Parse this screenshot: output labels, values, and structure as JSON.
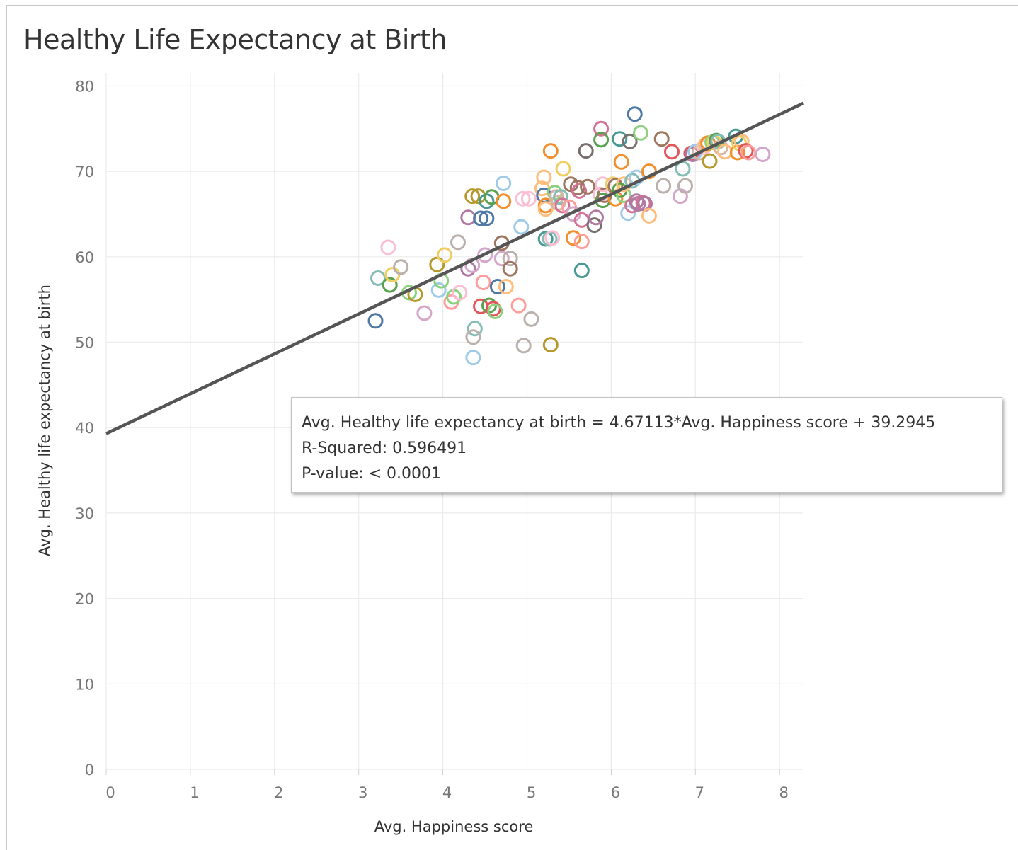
{
  "page": {
    "title": "Healthy Life Expectancy at Birth"
  },
  "tooltip": {
    "equation": "Avg. Healthy life expectancy at birth = 4.67113*Avg. Happiness score + 39.2945",
    "r_squared": "R-Squared: 0.596491",
    "p_value": "P-value: < 0.0001"
  },
  "chart_data": {
    "type": "scatter",
    "title": "Healthy Life Expectancy at Birth",
    "xlabel": "Avg. Happiness score",
    "ylabel": "Avg. Healthy life expectancy at birth",
    "xlim": [
      0,
      8.3
    ],
    "ylim": [
      0,
      80
    ],
    "xticks": [
      0,
      1,
      2,
      3,
      4,
      5,
      6,
      7,
      8
    ],
    "yticks": [
      0,
      10,
      20,
      30,
      40,
      50,
      60,
      70,
      80
    ],
    "grid": true,
    "marker": "hollow-circle",
    "trend_line": {
      "slope": 4.67113,
      "intercept": 39.2945,
      "color": "#555555"
    },
    "colors": [
      "#4e79a7",
      "#a0cbe8",
      "#f28e2b",
      "#ffbe7d",
      "#59a14f",
      "#8cd17d",
      "#b6992d",
      "#f1ce63",
      "#499894",
      "#86bcb6",
      "#e15759",
      "#ff9d9a",
      "#79706e",
      "#bab0ac",
      "#d37295",
      "#fabfd2",
      "#b07aa1",
      "#d4a6c8",
      "#9d7660",
      "#d7b5a6"
    ],
    "points": [
      [
        3.2,
        52.5,
        0
      ],
      [
        3.23,
        57.5,
        9
      ],
      [
        3.35,
        61.1,
        15
      ],
      [
        3.37,
        56.7,
        4
      ],
      [
        3.4,
        57.9,
        7
      ],
      [
        3.5,
        58.8,
        13
      ],
      [
        3.6,
        55.8,
        5
      ],
      [
        3.67,
        55.6,
        6
      ],
      [
        3.78,
        53.4,
        17
      ],
      [
        3.93,
        59.1,
        6
      ],
      [
        3.95,
        56.1,
        1
      ],
      [
        3.98,
        57.2,
        5
      ],
      [
        4.02,
        60.2,
        7
      ],
      [
        4.1,
        54.7,
        11
      ],
      [
        4.13,
        55.3,
        5
      ],
      [
        4.18,
        61.7,
        13
      ],
      [
        4.2,
        55.8,
        15
      ],
      [
        4.3,
        64.6,
        16
      ],
      [
        4.3,
        58.6,
        16
      ],
      [
        4.35,
        59.0,
        17
      ],
      [
        4.35,
        67.1,
        6
      ],
      [
        4.38,
        51.6,
        9
      ],
      [
        4.36,
        50.6,
        13
      ],
      [
        4.36,
        48.2,
        1
      ],
      [
        4.42,
        67.1,
        6
      ],
      [
        4.45,
        64.5,
        0
      ],
      [
        4.45,
        54.2,
        10
      ],
      [
        4.48,
        57.0,
        11
      ],
      [
        4.5,
        60.2,
        17
      ],
      [
        4.52,
        66.5,
        8
      ],
      [
        4.52,
        64.5,
        0
      ],
      [
        4.55,
        54.3,
        4
      ],
      [
        4.58,
        67.0,
        4
      ],
      [
        4.6,
        53.9,
        10
      ],
      [
        4.62,
        53.6,
        5
      ],
      [
        4.65,
        56.5,
        0
      ],
      [
        4.7,
        61.6,
        18
      ],
      [
        4.72,
        66.5,
        2
      ],
      [
        4.72,
        68.6,
        1
      ],
      [
        4.7,
        59.8,
        17
      ],
      [
        4.75,
        56.5,
        3
      ],
      [
        4.8,
        59.8,
        13
      ],
      [
        4.8,
        58.6,
        18
      ],
      [
        4.9,
        54.3,
        11
      ],
      [
        4.93,
        63.5,
        1
      ],
      [
        4.95,
        66.8,
        15
      ],
      [
        4.96,
        49.6,
        13
      ],
      [
        5.02,
        66.8,
        15
      ],
      [
        5.05,
        52.7,
        13
      ],
      [
        5.18,
        68.0,
        3
      ],
      [
        5.2,
        69.3,
        3
      ],
      [
        5.2,
        67.2,
        0
      ],
      [
        5.22,
        62.1,
        8
      ],
      [
        5.22,
        66.0,
        2
      ],
      [
        5.22,
        65.6,
        3
      ],
      [
        5.27,
        62.1,
        9
      ],
      [
        5.28,
        72.4,
        2
      ],
      [
        5.28,
        49.7,
        6
      ],
      [
        5.3,
        62.2,
        15
      ],
      [
        5.33,
        67.5,
        5
      ],
      [
        5.35,
        67.0,
        19
      ],
      [
        5.37,
        66.3,
        19
      ],
      [
        5.4,
        67.0,
        9
      ],
      [
        5.42,
        66.0,
        14
      ],
      [
        5.43,
        70.3,
        7
      ],
      [
        5.5,
        65.8,
        11
      ],
      [
        5.52,
        68.5,
        18
      ],
      [
        5.55,
        62.2,
        2
      ],
      [
        5.55,
        65.0,
        17
      ],
      [
        5.6,
        68.1,
        18
      ],
      [
        5.62,
        67.7,
        14
      ],
      [
        5.65,
        61.8,
        11
      ],
      [
        5.65,
        58.4,
        8
      ],
      [
        5.65,
        64.3,
        14
      ],
      [
        5.7,
        72.4,
        12
      ],
      [
        5.72,
        68.2,
        18
      ],
      [
        5.8,
        63.7,
        12
      ],
      [
        5.82,
        64.6,
        16
      ],
      [
        5.87,
        67.3,
        15
      ],
      [
        5.88,
        75.0,
        14
      ],
      [
        5.88,
        73.7,
        4
      ],
      [
        5.9,
        66.6,
        4
      ],
      [
        5.92,
        67.2,
        18
      ],
      [
        5.9,
        68.5,
        15
      ],
      [
        6.02,
        68.5,
        7
      ],
      [
        6.05,
        68.3,
        18
      ],
      [
        6.05,
        66.8,
        2
      ],
      [
        6.1,
        73.8,
        8
      ],
      [
        6.1,
        67.8,
        4
      ],
      [
        6.12,
        71.1,
        2
      ],
      [
        6.15,
        67.2,
        5
      ],
      [
        6.15,
        68.5,
        3
      ],
      [
        6.2,
        65.1,
        1
      ],
      [
        6.22,
        73.5,
        12
      ],
      [
        6.25,
        66.0,
        14
      ],
      [
        6.25,
        68.9,
        9
      ],
      [
        6.28,
        76.7,
        0
      ],
      [
        6.3,
        69.3,
        1
      ],
      [
        6.3,
        66.5,
        16
      ],
      [
        6.32,
        66.2,
        16
      ],
      [
        6.35,
        74.5,
        5
      ],
      [
        6.38,
        66.3,
        14
      ],
      [
        6.4,
        66.2,
        16
      ],
      [
        6.45,
        64.8,
        3
      ],
      [
        6.45,
        70.0,
        2
      ],
      [
        6.6,
        73.8,
        18
      ],
      [
        6.62,
        68.3,
        13
      ],
      [
        6.72,
        72.3,
        10
      ],
      [
        6.82,
        67.1,
        17
      ],
      [
        6.85,
        70.3,
        9
      ],
      [
        6.88,
        68.3,
        13
      ],
      [
        6.95,
        72.1,
        10
      ],
      [
        6.97,
        72.0,
        16
      ],
      [
        7.0,
        72.3,
        1
      ],
      [
        7.05,
        72.2,
        19
      ],
      [
        7.1,
        72.8,
        15
      ],
      [
        7.12,
        73.1,
        3
      ],
      [
        7.15,
        73.3,
        2
      ],
      [
        7.17,
        71.2,
        6
      ],
      [
        7.2,
        73.4,
        5
      ],
      [
        7.22,
        73.4,
        7
      ],
      [
        7.25,
        73.6,
        4
      ],
      [
        7.27,
        73.5,
        9
      ],
      [
        7.3,
        72.8,
        19
      ],
      [
        7.35,
        72.3,
        3
      ],
      [
        7.48,
        74.1,
        8
      ],
      [
        7.5,
        72.2,
        2
      ],
      [
        7.52,
        73.3,
        7
      ],
      [
        7.55,
        73.5,
        3
      ],
      [
        7.6,
        72.4,
        10
      ],
      [
        7.63,
        72.2,
        11
      ],
      [
        7.8,
        72.0,
        17
      ]
    ]
  }
}
